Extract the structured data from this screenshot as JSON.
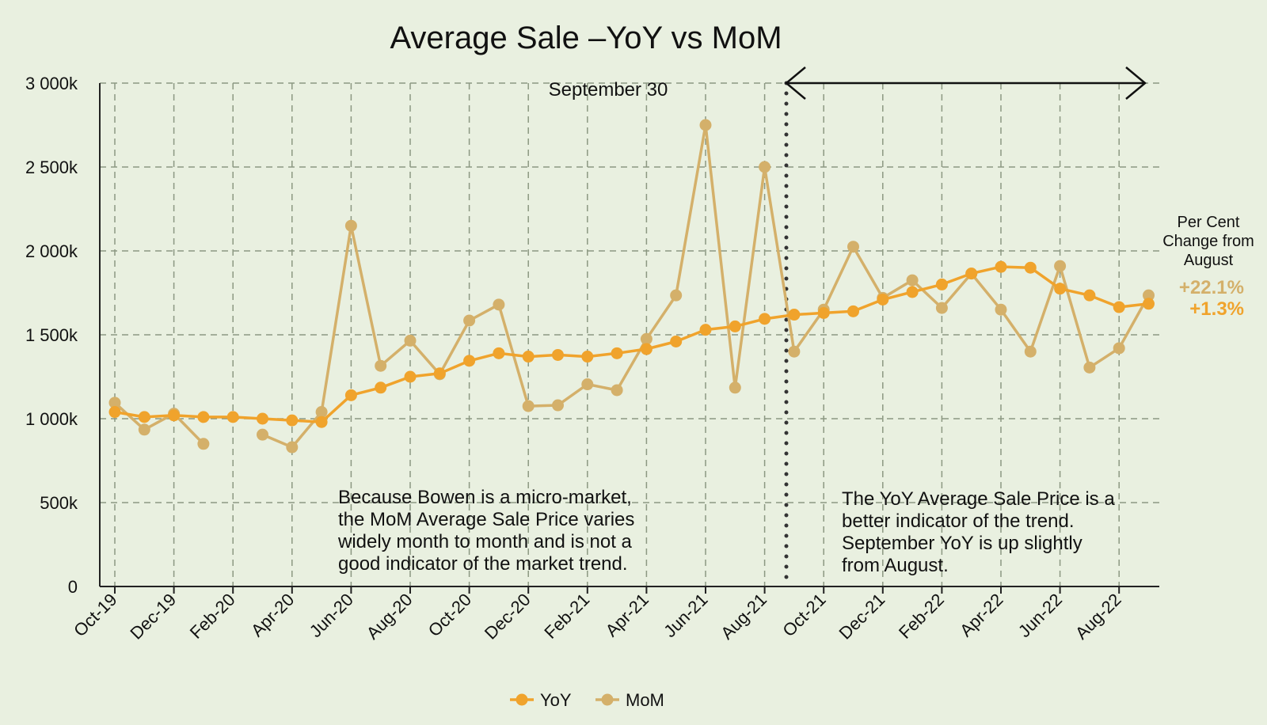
{
  "chart_data": {
    "type": "line",
    "title": "Average Sale –YoY vs MoM",
    "x": [
      "Oct-19",
      "Nov-19",
      "Dec-19",
      "Jan-20",
      "Feb-20",
      "Mar-20",
      "Apr-20",
      "May-20",
      "Jun-20",
      "Jul-20",
      "Aug-20",
      "Sep-20",
      "Oct-20",
      "Nov-20",
      "Dec-20",
      "Jan-21",
      "Feb-21",
      "Mar-21",
      "Apr-21",
      "May-21",
      "Jun-21",
      "Jul-21",
      "Aug-21",
      "Sep-21",
      "Oct-21",
      "Nov-21",
      "Dec-21",
      "Jan-22",
      "Feb-22",
      "Mar-22",
      "Apr-22",
      "May-22",
      "Jun-22",
      "Jul-22",
      "Aug-22",
      "Sep-22"
    ],
    "x_tick_labels": [
      "Oct-19",
      "Dec-19",
      "Feb-20",
      "Apr-20",
      "Jun-20",
      "Aug-20",
      "Oct-20",
      "Dec-20",
      "Feb-21",
      "Apr-21",
      "Jun-21",
      "Aug-21",
      "Oct-21",
      "Dec-21",
      "Feb-22",
      "Apr-22",
      "Jun-22",
      "Aug-22"
    ],
    "y_ticks": [
      {
        "value": 0,
        "label": "0"
      },
      {
        "value": 500,
        "label": "500k"
      },
      {
        "value": 1000,
        "label": "1 000k"
      },
      {
        "value": 1500,
        "label": "1 500k"
      },
      {
        "value": 2000,
        "label": "2 000k"
      },
      {
        "value": 2500,
        "label": "2 500k"
      },
      {
        "value": 3000,
        "label": "3 000k"
      }
    ],
    "ylim": [
      0,
      3000
    ],
    "grid": true,
    "legend_position": "bottom",
    "series": [
      {
        "name": "YoY",
        "color": "#f0a32c",
        "values": [
          1040,
          1010,
          1020,
          1010,
          1010,
          1000,
          990,
          980,
          1140,
          1185,
          1250,
          1270,
          1345,
          1390,
          1370,
          1380,
          1370,
          1390,
          1415,
          1460,
          1530,
          1550,
          1595,
          1620,
          1630,
          1640,
          1710,
          1755,
          1800,
          1865,
          1905,
          1900,
          1775,
          1735,
          1665,
          1685
        ]
      },
      {
        "name": "MoM",
        "color": "#d4b06a",
        "values": [
          1095,
          935,
          1030,
          850,
          null,
          905,
          830,
          1040,
          2150,
          1315,
          1465,
          1265,
          1585,
          1680,
          1075,
          1080,
          1205,
          1170,
          1475,
          1735,
          2750,
          1185,
          2500,
          1400,
          1650,
          2025,
          1720,
          1825,
          1660,
          1865,
          1650,
          1400,
          1910,
          1305,
          1420,
          1735
        ]
      }
    ],
    "annotations": {
      "marker_label": "September 30",
      "left_note": [
        "Because Bowen is a micro-market,",
        "the MoM Average Sale Price varies",
        "widely month to month and is not a",
        "good indicator of the market trend."
      ],
      "right_note": [
        "The YoY Average Sale Price is a",
        "better indicator of the trend.",
        "September YoY is up slightly",
        "from August."
      ],
      "side_title": [
        "Per Cent",
        "Change from",
        "August"
      ],
      "mom_change": "+22.1%",
      "yoy_change": "+1.3%"
    }
  }
}
